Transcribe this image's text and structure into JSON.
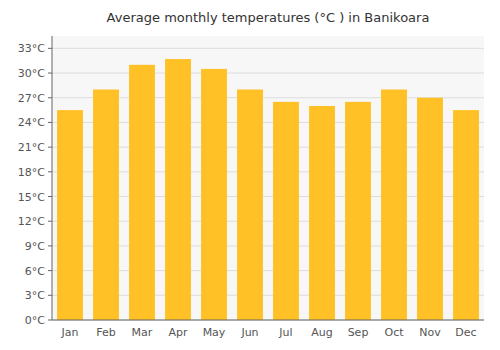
{
  "chart_data": {
    "type": "bar",
    "title": "Average monthly temperatures (°C ) in Banikoara",
    "categories": [
      "Jan",
      "Feb",
      "Mar",
      "Apr",
      "May",
      "Jun",
      "Jul",
      "Aug",
      "Sep",
      "Oct",
      "Nov",
      "Dec"
    ],
    "values": [
      25.5,
      28.0,
      31.0,
      31.7,
      30.5,
      28.0,
      26.5,
      26.0,
      26.5,
      28.0,
      27.0,
      25.5
    ],
    "color": "#FFC125",
    "ylim": [
      0,
      34.5
    ],
    "yticks": [
      {
        "value": 0,
        "label": "0°C"
      },
      {
        "value": 3,
        "label": "3°C"
      },
      {
        "value": 6,
        "label": "6°C"
      },
      {
        "value": 9,
        "label": "9°C"
      },
      {
        "value": 12,
        "label": "12°C"
      },
      {
        "value": 15,
        "label": "15°C"
      },
      {
        "value": 18,
        "label": "18°C"
      },
      {
        "value": 21,
        "label": "21°C"
      },
      {
        "value": 24,
        "label": "24°C"
      },
      {
        "value": 27,
        "label": "27°C"
      },
      {
        "value": 30,
        "label": "30°C"
      },
      {
        "value": 33,
        "label": "33°C"
      }
    ],
    "grid": true
  }
}
